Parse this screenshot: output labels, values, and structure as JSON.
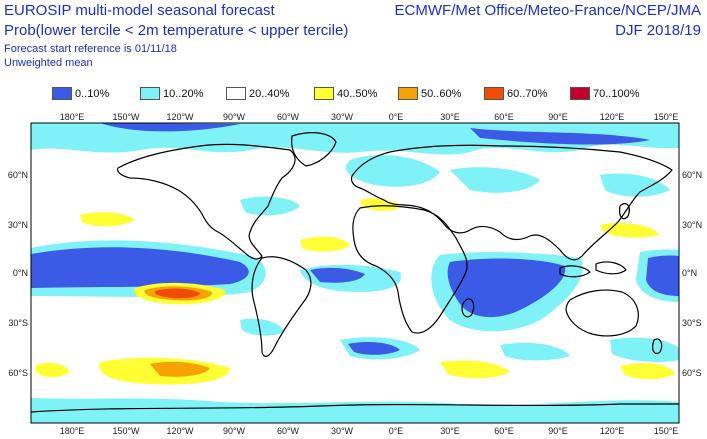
{
  "header": {
    "title": "EUROSIP multi-model seasonal forecast",
    "subtitle": "Prob(lower tercile < 2m temperature < upper tercile)",
    "start_ref": "Forecast start reference is 01/11/18",
    "weighting": "Unweighted mean",
    "centres": "ECMWF/Met Office/Meteo-France/NCEP/JMA",
    "season": "DJF 2018/19"
  },
  "legend": [
    {
      "label": "0..10%",
      "color": "#3b5be6"
    },
    {
      "label": "10..20%",
      "color": "#7ef2f6"
    },
    {
      "label": "20..40%",
      "color": "#ffffff"
    },
    {
      "label": "40..50%",
      "color": "#ffff33"
    },
    {
      "label": "50..60%",
      "color": "#f5a202"
    },
    {
      "label": "60..70%",
      "color": "#f04d04"
    },
    {
      "label": "70..100%",
      "color": "#c4012c"
    }
  ],
  "axes": {
    "lon_top": [
      "180°E",
      "150°W",
      "120°W",
      "90°W",
      "60°W",
      "30°W",
      "0°E",
      "30°E",
      "60°E",
      "90°E",
      "120°E",
      "150°E"
    ],
    "lon_bottom": [
      "180°E",
      "150°W",
      "120°W",
      "90°W",
      "60°W",
      "30°W",
      "0°E",
      "30°E",
      "60°E",
      "90°E",
      "120°E",
      "150°E"
    ],
    "lat_left": [
      "60°N",
      "30°N",
      "0°N",
      "30°S",
      "60°S"
    ],
    "lat_right": [
      "60°N",
      "30°N",
      "0°N",
      "30°S",
      "60°S"
    ]
  }
}
